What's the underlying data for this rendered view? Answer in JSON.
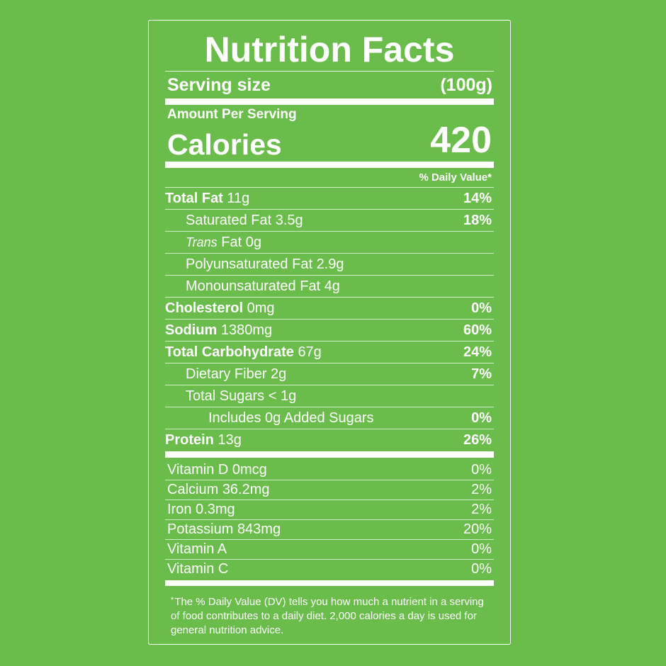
{
  "title": "Nutrition Facts",
  "serving_size": {
    "label": "Serving size",
    "value": "(100g)"
  },
  "amount_per_serving": "Amount Per Serving",
  "calories": {
    "label": "Calories",
    "value": "420"
  },
  "daily_value_header": "% Daily Value*",
  "nutrients": [
    {
      "name": "Total Fat",
      "amount": "11g",
      "dv": "14%"
    },
    {
      "name": "Saturated Fat",
      "amount": "3.5g",
      "dv": "18%"
    },
    {
      "name_italic": "Trans",
      "name": "Fat",
      "amount": "0g"
    },
    {
      "name": "Polyunsaturated Fat",
      "amount": "2.9g"
    },
    {
      "name": "Monounsaturated Fat",
      "amount": "4g"
    },
    {
      "name": "Cholesterol",
      "amount": "0mg",
      "dv": "0%"
    },
    {
      "name": "Sodium",
      "amount": "1380mg",
      "dv": "60%"
    },
    {
      "name": "Total Carbohydrate",
      "amount": "67g",
      "dv": "24%"
    },
    {
      "name": "Dietary Fiber",
      "amount": "2g",
      "dv": "7%"
    },
    {
      "name": "Total Sugars",
      "amount": "< 1g"
    },
    {
      "name": "Includes 0g Added Sugars",
      "dv": "0%"
    },
    {
      "name": "Protein",
      "amount": "13g",
      "dv": "26%"
    }
  ],
  "vitamins": [
    {
      "name": "Vitamin D",
      "amount": "0mcg",
      "dv": "0%"
    },
    {
      "name": "Calcium",
      "amount": "36.2mg",
      "dv": "2%"
    },
    {
      "name": "Iron",
      "amount": "0.3mg",
      "dv": "2%"
    },
    {
      "name": "Potassium",
      "amount": "843mg",
      "dv": "20%"
    },
    {
      "name": "Vitamin A",
      "dv": "0%"
    },
    {
      "name": "Vitamin C",
      "dv": "0%"
    }
  ],
  "footnote": {
    "marker": "*",
    "text": "The % Daily Value (DV) tells you how much a nutrient in a serving of food contributes to a daily diet. 2,000 calories a day is used for general nutrition advice."
  }
}
